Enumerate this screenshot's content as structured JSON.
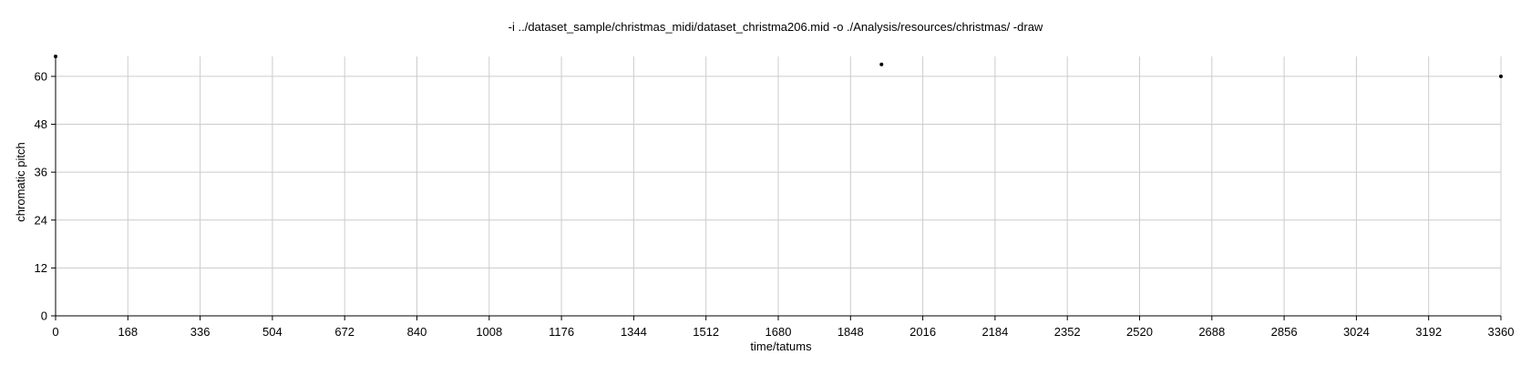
{
  "chart_data": {
    "type": "scatter",
    "title": "-i ../dataset_sample/christmas_midi/dataset_christma206.mid -o ./Analysis/resources/christmas/ -draw",
    "xlabel": "time/tatums",
    "ylabel": "chromatic pitch",
    "xlim": [
      0,
      3360
    ],
    "ylim": [
      0,
      65
    ],
    "xticks": [
      0,
      168,
      336,
      504,
      672,
      840,
      1008,
      1176,
      1344,
      1512,
      1680,
      1848,
      2016,
      2184,
      2352,
      2520,
      2688,
      2856,
      3024,
      3192,
      3360
    ],
    "yticks": [
      0,
      12,
      24,
      36,
      48,
      60
    ],
    "grid": true,
    "points": [
      {
        "x": 0,
        "y": 65
      },
      {
        "x": 1920,
        "y": 63
      },
      {
        "x": 3360,
        "y": 60
      }
    ],
    "point_color": "#000000",
    "grid_color": "#cccccc"
  }
}
